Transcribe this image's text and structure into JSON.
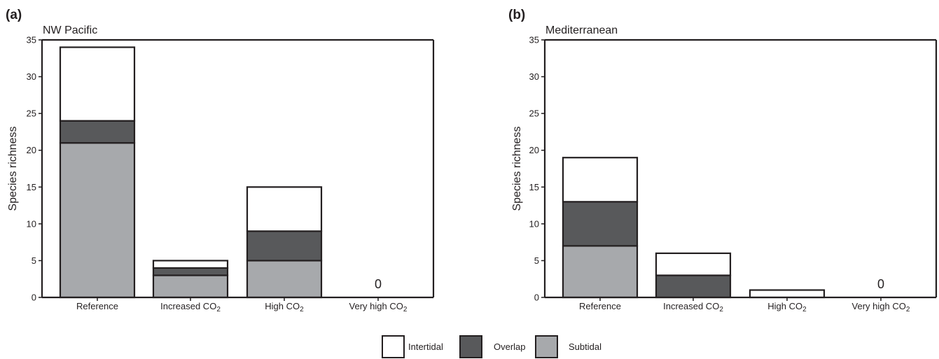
{
  "colors": {
    "Intertidal": "#ffffff",
    "Overlap": "#58595b",
    "Subtidal": "#a7a9ac",
    "stroke": "#231f20"
  },
  "legend": [
    "Intertidal",
    "Overlap",
    "Subtidal"
  ],
  "chart_data": [
    {
      "type": "bar",
      "stacked": true,
      "panel": "(a)",
      "title": "NW Pacific",
      "ylabel": "Species richness",
      "ylim": [
        0,
        35
      ],
      "yticks": [
        0,
        5,
        10,
        15,
        20,
        25,
        30,
        35
      ],
      "categories": [
        {
          "main": "Reference",
          "sub": "",
          "post": ""
        },
        {
          "main": "Increased CO",
          "sub": "2",
          "post": ""
        },
        {
          "main": "High CO",
          "sub": "2",
          "post": ""
        },
        {
          "main": "Very high CO",
          "sub": "2",
          "post": ""
        }
      ],
      "series": [
        {
          "name": "Subtidal",
          "values": [
            21,
            3,
            5,
            0
          ]
        },
        {
          "name": "Overlap",
          "values": [
            3,
            1,
            4,
            0
          ]
        },
        {
          "name": "Intertidal",
          "values": [
            10,
            1,
            6,
            0
          ]
        }
      ],
      "annotations": [
        {
          "category_index": 3,
          "text": "0"
        }
      ]
    },
    {
      "type": "bar",
      "stacked": true,
      "panel": "(b)",
      "title": "Mediterranean",
      "ylabel": "Species richness",
      "ylim": [
        0,
        35
      ],
      "yticks": [
        0,
        5,
        10,
        15,
        20,
        25,
        30,
        35
      ],
      "categories": [
        {
          "main": "Reference",
          "sub": "",
          "post": ""
        },
        {
          "main": "Increased CO",
          "sub": "2",
          "post": ""
        },
        {
          "main": "High CO",
          "sub": "2",
          "post": ""
        },
        {
          "main": "Very high CO",
          "sub": "2",
          "post": ""
        }
      ],
      "series": [
        {
          "name": "Subtidal",
          "values": [
            7,
            0,
            0,
            0
          ]
        },
        {
          "name": "Overlap",
          "values": [
            6,
            3,
            0,
            0
          ]
        },
        {
          "name": "Intertidal",
          "values": [
            6,
            3,
            1,
            0
          ]
        }
      ],
      "annotations": [
        {
          "category_index": 3,
          "text": "0"
        }
      ]
    }
  ]
}
